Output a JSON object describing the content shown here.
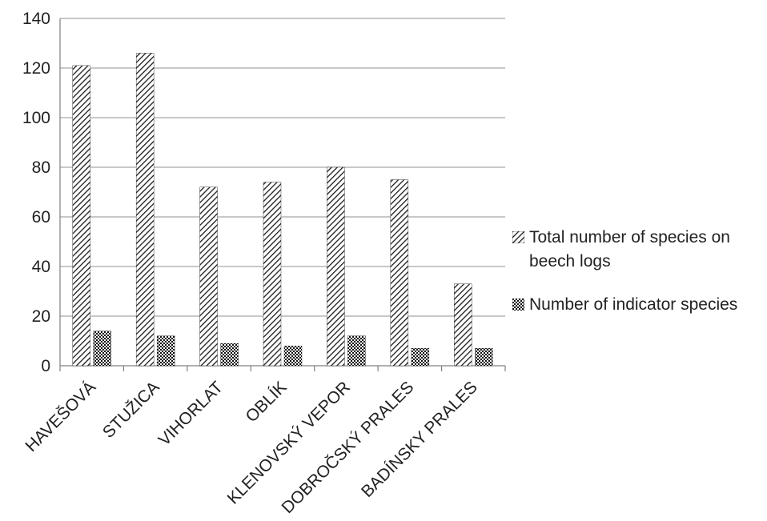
{
  "chart_data": {
    "type": "bar",
    "title": "",
    "xlabel": "",
    "ylabel": "",
    "categories": [
      "HAVEŠOVÁ",
      "STUŽICA",
      "VIHORLAT",
      "OBLÍK",
      "KLENOVSKÝ VEPOR",
      "DOBROČSKÝ PRALES",
      "BADÍNSKY PRALES"
    ],
    "series": [
      {
        "name": "Total number of species on beech logs",
        "values": [
          121,
          126,
          72,
          74,
          80,
          75,
          33
        ],
        "pattern": "diagonal-hatch"
      },
      {
        "name": "Number of indicator species",
        "values": [
          14,
          12,
          9,
          8,
          12,
          7,
          7
        ],
        "pattern": "checker"
      }
    ],
    "ylim": [
      0,
      140
    ],
    "yticks": [
      0,
      20,
      40,
      60,
      80,
      100,
      120,
      140
    ],
    "grid": true,
    "legend_position": "right",
    "colors": {
      "ink": "#1a1a1a",
      "grid": "#a6a6a6",
      "axis": "#808080"
    }
  }
}
